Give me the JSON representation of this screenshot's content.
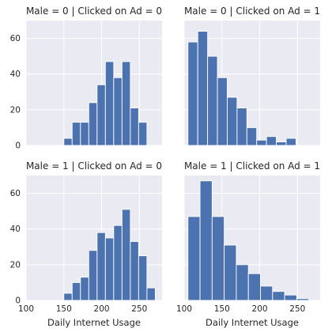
{
  "chart_data": [
    {
      "type": "bar",
      "title": "Male = 0 | Clicked on Ad = 0",
      "xlabel": "",
      "ylabel": "",
      "xlim": [
        100,
        280
      ],
      "ylim": [
        0,
        70
      ],
      "xticks": [],
      "yticks": [
        "0",
        "20",
        "40",
        "60"
      ],
      "bins": [
        {
          "x0": 150,
          "x1": 161,
          "count": 4
        },
        {
          "x0": 161,
          "x1": 172,
          "count": 13
        },
        {
          "x0": 172,
          "x1": 183,
          "count": 13
        },
        {
          "x0": 183,
          "x1": 194,
          "count": 24
        },
        {
          "x0": 194,
          "x1": 205,
          "count": 34
        },
        {
          "x0": 205,
          "x1": 216,
          "count": 47
        },
        {
          "x0": 216,
          "x1": 227,
          "count": 38
        },
        {
          "x0": 227,
          "x1": 238,
          "count": 47
        },
        {
          "x0": 238,
          "x1": 249,
          "count": 21
        },
        {
          "x0": 249,
          "x1": 260,
          "count": 13
        }
      ]
    },
    {
      "type": "bar",
      "title": "Male = 0 | Clicked on Ad = 1",
      "xlabel": "",
      "ylabel": "",
      "xlim": [
        100,
        280
      ],
      "ylim": [
        0,
        70
      ],
      "xticks": [],
      "yticks": [],
      "bins": [
        {
          "x0": 105,
          "x1": 118,
          "count": 58
        },
        {
          "x0": 118,
          "x1": 131,
          "count": 64
        },
        {
          "x0": 131,
          "x1": 144,
          "count": 50
        },
        {
          "x0": 144,
          "x1": 157,
          "count": 38
        },
        {
          "x0": 157,
          "x1": 170,
          "count": 27
        },
        {
          "x0": 170,
          "x1": 183,
          "count": 21
        },
        {
          "x0": 183,
          "x1": 196,
          "count": 10
        },
        {
          "x0": 196,
          "x1": 209,
          "count": 3
        },
        {
          "x0": 209,
          "x1": 222,
          "count": 5
        },
        {
          "x0": 222,
          "x1": 235,
          "count": 2
        },
        {
          "x0": 235,
          "x1": 248,
          "count": 4
        }
      ]
    },
    {
      "type": "bar",
      "title": "Male = 1 | Clicked on Ad = 0",
      "xlabel": "Daily Internet Usage",
      "ylabel": "",
      "xlim": [
        100,
        280
      ],
      "ylim": [
        0,
        70
      ],
      "xticks": [
        "100",
        "150",
        "200",
        "250"
      ],
      "yticks": [
        "0",
        "20",
        "40",
        "60"
      ],
      "bins": [
        {
          "x0": 150,
          "x1": 161,
          "count": 4
        },
        {
          "x0": 161,
          "x1": 172,
          "count": 10
        },
        {
          "x0": 172,
          "x1": 183,
          "count": 13
        },
        {
          "x0": 183,
          "x1": 194,
          "count": 28
        },
        {
          "x0": 194,
          "x1": 205,
          "count": 38
        },
        {
          "x0": 205,
          "x1": 216,
          "count": 35
        },
        {
          "x0": 216,
          "x1": 227,
          "count": 42
        },
        {
          "x0": 227,
          "x1": 238,
          "count": 51
        },
        {
          "x0": 238,
          "x1": 249,
          "count": 33
        },
        {
          "x0": 249,
          "x1": 260,
          "count": 25
        },
        {
          "x0": 260,
          "x1": 271,
          "count": 7
        }
      ]
    },
    {
      "type": "bar",
      "title": "Male = 1 | Clicked on Ad = 1",
      "xlabel": "Daily Internet Usage",
      "ylabel": "",
      "xlim": [
        100,
        280
      ],
      "ylim": [
        0,
        70
      ],
      "xticks": [
        "100",
        "150",
        "200",
        "250"
      ],
      "yticks": [],
      "bins": [
        {
          "x0": 105,
          "x1": 121,
          "count": 47
        },
        {
          "x0": 121,
          "x1": 137,
          "count": 67
        },
        {
          "x0": 137,
          "x1": 153,
          "count": 47
        },
        {
          "x0": 153,
          "x1": 169,
          "count": 31
        },
        {
          "x0": 169,
          "x1": 185,
          "count": 20
        },
        {
          "x0": 185,
          "x1": 201,
          "count": 15
        },
        {
          "x0": 201,
          "x1": 217,
          "count": 8
        },
        {
          "x0": 217,
          "x1": 233,
          "count": 5
        },
        {
          "x0": 233,
          "x1": 249,
          "count": 3
        },
        {
          "x0": 249,
          "x1": 265,
          "count": 1
        }
      ]
    }
  ],
  "colors": {
    "bar_fill": "#4c72b0",
    "panel_background": "#eaeaf2",
    "grid": "#ffffff",
    "text": "#262626"
  },
  "grid": true
}
